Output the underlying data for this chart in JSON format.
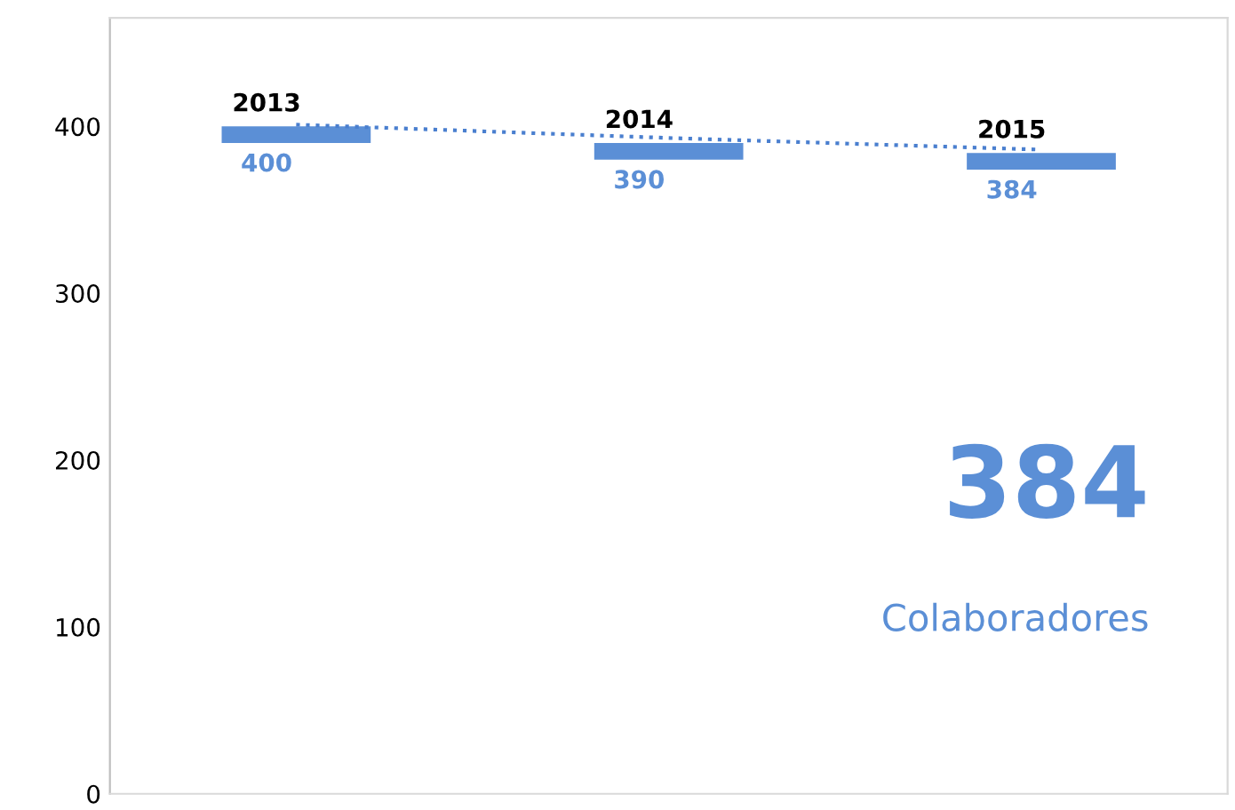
{
  "chart_data": {
    "type": "bar",
    "categories": [
      "2013",
      "2014",
      "2015"
    ],
    "series": [
      {
        "color": "#5b8fd6",
        "base": [
          390,
          380,
          374
        ],
        "values": [
          10,
          10,
          10
        ],
        "value_labels": [
          "400",
          "390",
          "384"
        ]
      },
      {
        "type": "line",
        "color": "#4a7fcf",
        "line_style": "dotted",
        "values": [
          401,
          393,
          386
        ]
      }
    ],
    "ylim": [
      0,
      465
    ],
    "yticks": [
      0,
      100,
      200,
      300,
      400
    ],
    "tick_labels": "y",
    "grid": false,
    "annotations": [
      "384",
      "Colaboradores"
    ]
  }
}
